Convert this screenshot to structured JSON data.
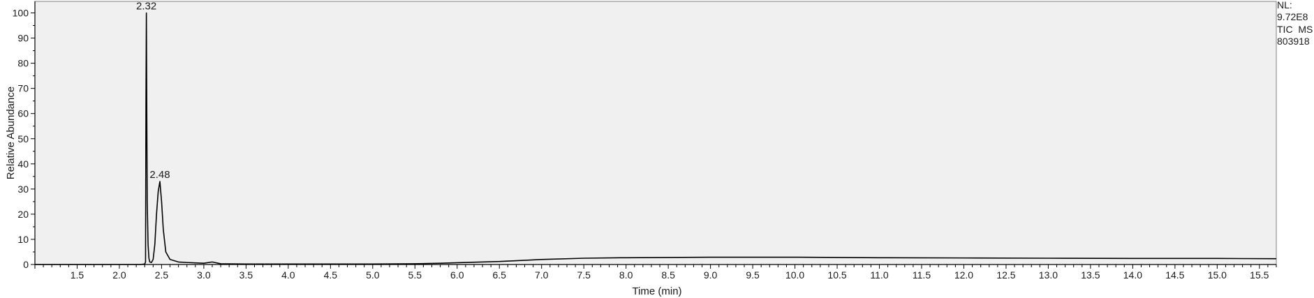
{
  "chart_data": {
    "type": "line",
    "title": "",
    "xlabel": "Time (min)",
    "ylabel": "Relative Abundance",
    "xlim": [
      1.0,
      15.7
    ],
    "ylim": [
      0,
      100
    ],
    "x_ticks": [
      1.5,
      2.0,
      2.5,
      3.0,
      3.5,
      4.0,
      4.5,
      5.0,
      5.5,
      6.0,
      6.5,
      7.0,
      7.5,
      8.0,
      8.5,
      9.0,
      9.5,
      10.0,
      10.5,
      11.0,
      11.5,
      12.0,
      12.5,
      13.0,
      13.5,
      14.0,
      14.5,
      15.0,
      15.5
    ],
    "x_tick_labels": [
      "1.5",
      "2.0",
      "2.5",
      "3.0",
      "3.5",
      "4.0",
      "4.5",
      "5.0",
      "5.5",
      "6.0",
      "6.5",
      "7.0",
      "7.5",
      "8.0",
      "8.5",
      "9.0",
      "9.5",
      "10.0",
      "10.5",
      "11.0",
      "11.5",
      "12.0",
      "12.5",
      "13.0",
      "13.5",
      "14.0",
      "14.5",
      "15.0",
      "15.5"
    ],
    "y_ticks": [
      0,
      10,
      20,
      30,
      40,
      50,
      60,
      70,
      80,
      90,
      100
    ],
    "y_tick_labels": [
      "0",
      "10",
      "20",
      "30",
      "40",
      "50",
      "60",
      "70",
      "80",
      "90",
      "100"
    ],
    "grid": false,
    "series": [
      {
        "color": "#000000",
        "x": [
          1.0,
          2.25,
          2.3,
          2.31,
          2.315,
          2.32,
          2.325,
          2.33,
          2.34,
          2.35,
          2.36,
          2.38,
          2.4,
          2.42,
          2.44,
          2.46,
          2.48,
          2.5,
          2.52,
          2.55,
          2.6,
          2.7,
          2.8,
          3.0,
          3.1,
          3.2,
          3.5,
          4.0,
          5.0,
          5.5,
          5.8,
          6.0,
          6.5,
          7.0,
          7.5,
          8.0,
          9.0,
          10.0,
          11.0,
          12.0,
          13.0,
          14.0,
          15.0,
          15.7
        ],
        "y": [
          0.0,
          0.0,
          0.2,
          1.0,
          65,
          100,
          60,
          25,
          8,
          2.5,
          1.0,
          0.8,
          2.0,
          8,
          20,
          29,
          33,
          25,
          14,
          5,
          2.0,
          1.0,
          0.8,
          0.5,
          1.0,
          0.3,
          0.2,
          0.2,
          0.2,
          0.3,
          0.5,
          0.7,
          1.2,
          2.0,
          2.5,
          2.7,
          2.9,
          2.9,
          2.7,
          2.6,
          2.5,
          2.4,
          2.4,
          2.3
        ]
      }
    ],
    "annotations": [
      {
        "x": 2.32,
        "y": 100,
        "text": "2.32"
      },
      {
        "x": 2.48,
        "y": 33,
        "text": "2.48"
      }
    ],
    "info_lines": [
      "NL:",
      "9.72E8",
      "TIC  MS",
      "803918"
    ]
  }
}
